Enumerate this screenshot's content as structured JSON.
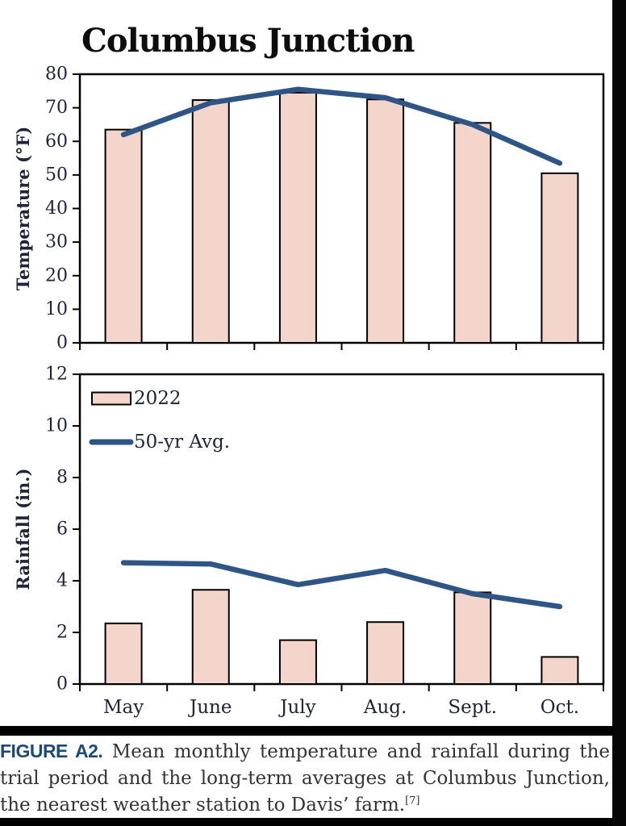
{
  "page": {
    "title": "Columbus Junction",
    "caption": {
      "label": "FIGURE A2.",
      "text": "Mean monthly temperature and rainfall during the trial period and the long-term averages at Columbus Junction, the nearest weather station to Davis’ farm.",
      "footnote_ref": "[7]"
    },
    "colors": {
      "bar_fill": "#f3d5cb",
      "bar_stroke": "#000000",
      "line": "#2e5585",
      "axis_text": "#20243a",
      "figure_label": "#1e4a75",
      "caption_text": "#333333"
    }
  },
  "chart_data": [
    {
      "type": "bar+line",
      "title": "Columbus Junction",
      "categories": [
        "May",
        "June",
        "July",
        "Aug.",
        "Sept.",
        "Oct."
      ],
      "series": [
        {
          "name": "2022",
          "type": "bar",
          "values": [
            63.5,
            72.3,
            74.5,
            72.5,
            65.5,
            50.5
          ]
        },
        {
          "name": "50-yr Avg.",
          "type": "line",
          "values": [
            62,
            71.5,
            75.5,
            73,
            65,
            53.5
          ]
        }
      ],
      "xlabel": "",
      "ylabel": "Temperature (°F)",
      "ylim": [
        0,
        80
      ],
      "yticks": [
        80,
        70,
        60,
        50,
        40,
        30,
        20,
        10,
        0
      ],
      "grid": false,
      "show_x_labels": false,
      "legend": false
    },
    {
      "type": "bar+line",
      "categories": [
        "May",
        "June",
        "July",
        "Aug.",
        "Sept.",
        "Oct."
      ],
      "series": [
        {
          "name": "2022",
          "type": "bar",
          "values": [
            2.35,
            3.65,
            1.7,
            2.4,
            3.55,
            1.05
          ]
        },
        {
          "name": "50-yr Avg.",
          "type": "line",
          "values": [
            4.7,
            4.65,
            3.85,
            4.4,
            3.5,
            3.0
          ]
        }
      ],
      "xlabel": "",
      "ylabel": "Rainfall (in.)",
      "ylim": [
        0,
        12
      ],
      "yticks": [
        12,
        10,
        8,
        6,
        4,
        2,
        0
      ],
      "grid": false,
      "show_x_labels": true,
      "legend": true,
      "legend_position": "top-left-inside",
      "legend_entries": [
        "2022",
        "50-yr Avg."
      ]
    }
  ]
}
